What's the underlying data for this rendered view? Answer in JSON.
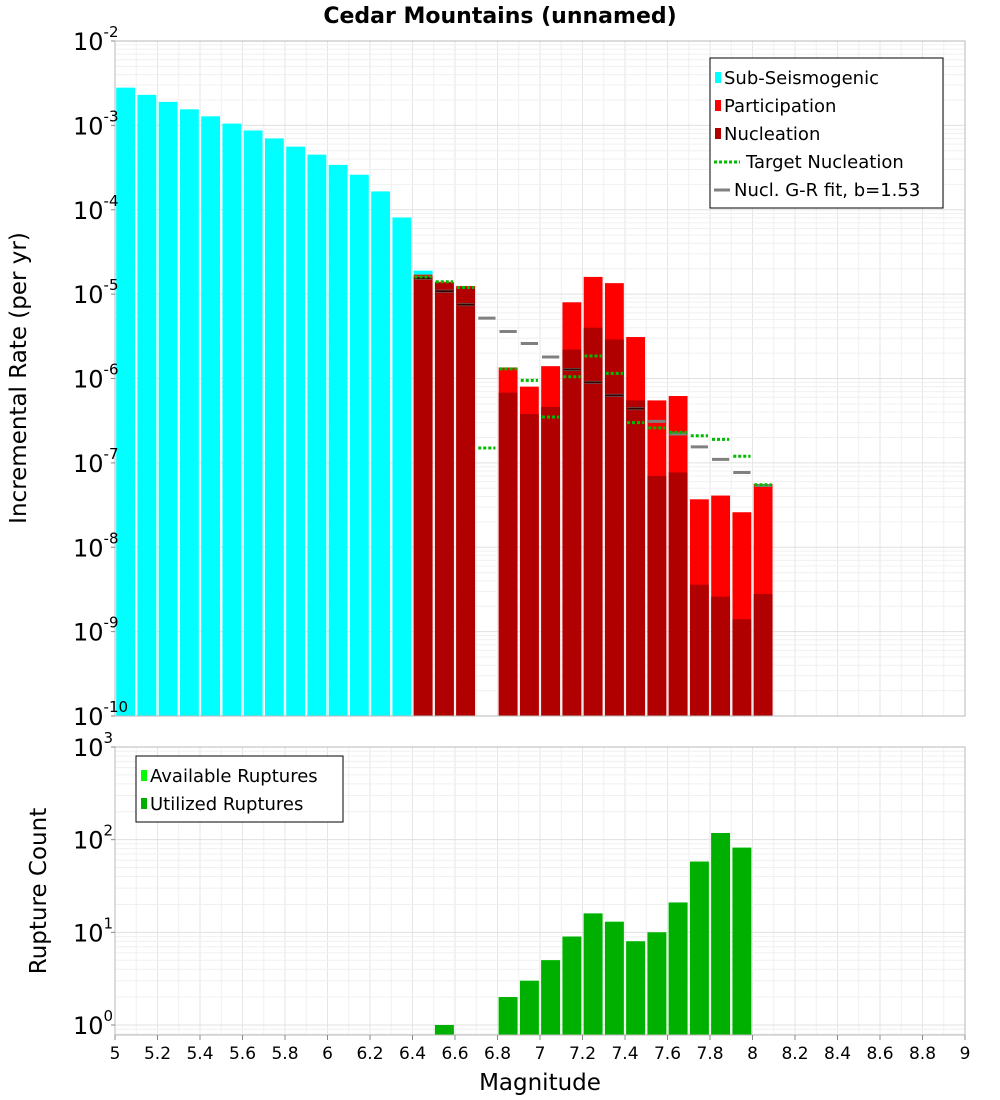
{
  "chart_data": {
    "title": "Cedar Mountains (unnamed)",
    "xlabel": "Magnitude",
    "xlim": [
      5,
      9
    ],
    "x_ticks": [
      "5",
      "5.2",
      "5.4",
      "5.6",
      "5.8",
      "6",
      "6.2",
      "6.4",
      "6.6",
      "6.8",
      "7",
      "7.2",
      "7.4",
      "7.6",
      "7.8",
      "8",
      "8.2",
      "8.4",
      "8.6",
      "8.8",
      "9"
    ],
    "bin_width": 0.1,
    "panels": [
      {
        "type": "bar",
        "ylabel": "Incremental Rate (per yr)",
        "yscale": "log",
        "ylim": [
          1e-10,
          0.01
        ],
        "y_ticks": [
          {
            "base": "10",
            "exp": "-2"
          },
          {
            "base": "10",
            "exp": "-3"
          },
          {
            "base": "10",
            "exp": "-4"
          },
          {
            "base": "10",
            "exp": "-5"
          },
          {
            "base": "10",
            "exp": "-6"
          },
          {
            "base": "10",
            "exp": "-7"
          },
          {
            "base": "10",
            "exp": "-8"
          },
          {
            "base": "10",
            "exp": "-9"
          },
          {
            "base": "10",
            "exp": "-10"
          }
        ],
        "series": [
          {
            "name": "Sub-Seismogenic",
            "style": "bar",
            "color": "#00ffff",
            "x": [
              5.05,
              5.15,
              5.25,
              5.35,
              5.45,
              5.55,
              5.65,
              5.75,
              5.85,
              5.95,
              6.05,
              6.15,
              6.25,
              6.35,
              6.45
            ],
            "values": [
              0.0028,
              0.0023,
              0.0019,
              0.00155,
              0.00128,
              0.00105,
              0.00087,
              0.0007,
              0.00056,
              0.00045,
              0.00034,
              0.00026,
              0.000165,
              8.1e-05,
              1.9e-05
            ]
          },
          {
            "name": "Participation",
            "style": "bar",
            "color": "#ff0000",
            "x": [
              6.45,
              6.55,
              6.65,
              6.85,
              6.95,
              7.05,
              7.15,
              7.25,
              7.35,
              7.45,
              7.55,
              7.65,
              7.75,
              7.85,
              7.95,
              8.05
            ],
            "values": [
              1.7e-05,
              1.4e-05,
              1.25e-05,
              1.35e-06,
              8e-07,
              1.4e-06,
              8e-06,
              1.6e-05,
              1.35e-05,
              3.1e-06,
              5.5e-07,
              6.2e-07,
              3.7e-08,
              4.1e-08,
              2.6e-08,
              5.6e-08
            ]
          },
          {
            "name": "Nucleation",
            "style": "bar",
            "color": "#b00000",
            "x": [
              6.45,
              6.55,
              6.65,
              6.85,
              6.95,
              7.05,
              7.15,
              7.25,
              7.35,
              7.45,
              7.55,
              7.65,
              7.75,
              7.85,
              7.95,
              8.05
            ],
            "values": [
              1.6e-05,
              1.35e-05,
              1.2e-05,
              6.8e-07,
              3.8e-07,
              4.6e-07,
              2.2e-06,
              4e-06,
              2.9e-06,
              5.5e-07,
              7e-08,
              7.7e-08,
              3.6e-09,
              2.6e-09,
              1.4e-09,
              2.8e-09
            ]
          },
          {
            "name": "Target Nucleation",
            "style": "dotted-step",
            "color": "#00bb00",
            "x": [
              6.45,
              6.55,
              6.65,
              6.75,
              6.85,
              6.95,
              7.05,
              7.15,
              7.25,
              7.35,
              7.45,
              7.55,
              7.65,
              7.75,
              7.85,
              7.95,
              8.05
            ],
            "values": [
              1.6e-05,
              1.4e-05,
              1.2e-05,
              1.5e-07,
              1.3e-06,
              9.5e-07,
              3.5e-07,
              1.05e-06,
              1.85e-06,
              1.15e-06,
              3e-07,
              2.6e-07,
              2.3e-07,
              2.1e-07,
              1.9e-07,
              1.2e-07,
              5.5e-08
            ]
          },
          {
            "name": "Nucl. G-R fit, b=1.53",
            "style": "dash-step",
            "color": "#808080",
            "x": [
              6.45,
              6.55,
              6.65,
              6.75,
              6.85,
              6.95,
              7.05,
              7.15,
              7.25,
              7.35,
              7.45,
              7.55,
              7.65,
              7.75,
              7.85,
              7.95,
              8.05
            ],
            "values": [
              1.55e-05,
              1.08e-05,
              7.5e-06,
              5.2e-06,
              3.6e-06,
              2.6e-06,
              1.8e-06,
              1.28e-06,
              9e-07,
              6.3e-07,
              4.4e-07,
              3.1e-07,
              2.2e-07,
              1.55e-07,
              1.1e-07,
              7.7e-08,
              5.4e-08
            ]
          }
        ],
        "legend": {
          "position": "top-right",
          "items": [
            {
              "label": "Sub-Seismogenic",
              "color": "#00ffff",
              "kind": "box"
            },
            {
              "label": "Participation",
              "color": "#ff0000",
              "kind": "box"
            },
            {
              "label": "Nucleation",
              "color": "#b00000",
              "kind": "box"
            },
            {
              "label": "Target Nucleation",
              "color": "#00bb00",
              "kind": "dotted"
            },
            {
              "label": "Nucl. G-R fit, b=1.53",
              "color": "#808080",
              "kind": "line"
            }
          ]
        }
      },
      {
        "type": "bar",
        "ylabel": "Rupture Count",
        "yscale": "log",
        "ylim": [
          0.78,
          1000
        ],
        "y_ticks": [
          {
            "base": "10",
            "exp": "3"
          },
          {
            "base": "10",
            "exp": "2"
          },
          {
            "base": "10",
            "exp": "1"
          },
          {
            "base": "10",
            "exp": "0"
          }
        ],
        "series": [
          {
            "name": "Available Ruptures",
            "style": "bar",
            "color": "#00ff00",
            "x": [
              6.55,
              6.85,
              6.95,
              7.05,
              7.15,
              7.25,
              7.35,
              7.45,
              7.55,
              7.65,
              7.75,
              7.85,
              7.95
            ],
            "values": [
              1,
              2,
              3,
              5,
              9,
              16,
              13,
              8,
              10,
              21,
              58,
              118,
              82
            ]
          },
          {
            "name": "Utilized Ruptures",
            "style": "bar",
            "color": "#00b000",
            "x": [
              6.55,
              6.85,
              6.95,
              7.05,
              7.15,
              7.25,
              7.35,
              7.45,
              7.55,
              7.65,
              7.75,
              7.85,
              7.95
            ],
            "values": [
              1,
              2,
              3,
              5,
              9,
              16,
              13,
              8,
              10,
              21,
              58,
              118,
              82
            ]
          }
        ],
        "legend": {
          "position": "top-left",
          "items": [
            {
              "label": "Available Ruptures",
              "color": "#00ff00",
              "kind": "box"
            },
            {
              "label": "Utilized Ruptures",
              "color": "#00b000",
              "kind": "box"
            }
          ]
        }
      }
    ]
  }
}
